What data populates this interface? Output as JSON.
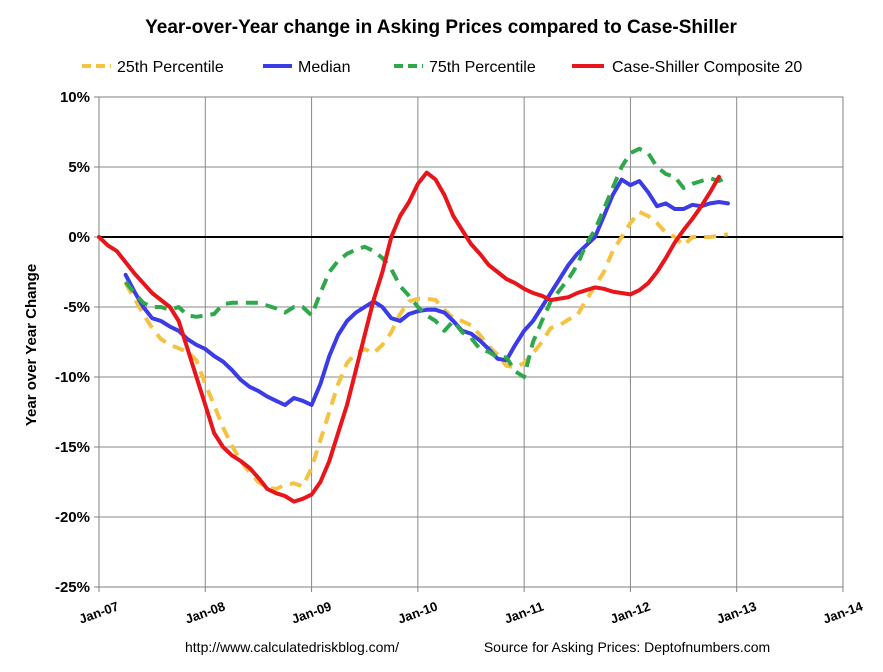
{
  "chart_data": {
    "type": "line",
    "title": "Year-over-Year change in Asking Prices compared to Case-Shiller",
    "xlabel": "",
    "ylabel": "Year over Year Change",
    "x_ticks": [
      "Jan-07",
      "Jan-08",
      "Jan-09",
      "Jan-10",
      "Jan-11",
      "Jan-12",
      "Jan-13",
      "Jan-14"
    ],
    "y_ticks": [
      "10%",
      "5%",
      "0%",
      "-5%",
      "-10%",
      "-15%",
      "-20%",
      "-25%"
    ],
    "ylim": [
      -25,
      10
    ],
    "xlim": [
      "2007-01",
      "2014-01"
    ],
    "grid": true,
    "legend_position": "top",
    "x_unit": "months since Jan-07",
    "series": [
      {
        "name": "25th Percentile",
        "color": "#F5C242",
        "style": "dashed",
        "points": [
          [
            3,
            -3.3
          ],
          [
            5,
            -5.5
          ],
          [
            6,
            -6.5
          ],
          [
            7,
            -7.3
          ],
          [
            8,
            -7.7
          ],
          [
            10,
            -8.2
          ],
          [
            11,
            -8.8
          ],
          [
            12,
            -10.5
          ],
          [
            13,
            -12
          ],
          [
            14,
            -13.6
          ],
          [
            15,
            -14.9
          ],
          [
            16,
            -16
          ],
          [
            17,
            -16.8
          ],
          [
            18,
            -17.5
          ],
          [
            19,
            -17.9
          ],
          [
            20,
            -18
          ],
          [
            21,
            -17.7
          ],
          [
            22,
            -17.6
          ],
          [
            23,
            -17.8
          ],
          [
            24,
            -16.5
          ],
          [
            25,
            -14.5
          ],
          [
            26,
            -12.5
          ],
          [
            27,
            -10.5
          ],
          [
            28,
            -9
          ],
          [
            29,
            -8.3
          ],
          [
            30,
            -8
          ],
          [
            31,
            -8.3
          ],
          [
            32,
            -7.7
          ],
          [
            33,
            -6.8
          ],
          [
            34,
            -5.5
          ],
          [
            35,
            -4.6
          ],
          [
            36,
            -4.4
          ],
          [
            37,
            -4.4
          ],
          [
            38,
            -4.5
          ],
          [
            39,
            -5.2
          ],
          [
            40,
            -5.8
          ],
          [
            41,
            -6
          ],
          [
            42,
            -6.3
          ],
          [
            43,
            -7
          ],
          [
            44,
            -7.8
          ],
          [
            45,
            -8.4
          ],
          [
            46,
            -9.2
          ],
          [
            47,
            -9.3
          ],
          [
            48,
            -9
          ],
          [
            49,
            -8.3
          ],
          [
            50,
            -7.5
          ],
          [
            51,
            -6.5
          ],
          [
            52,
            -6.3
          ],
          [
            53,
            -5.9
          ],
          [
            54,
            -5.6
          ],
          [
            55,
            -4.5
          ],
          [
            56,
            -3.5
          ],
          [
            57,
            -2.5
          ],
          [
            58,
            -1
          ],
          [
            59,
            0
          ],
          [
            60,
            1
          ],
          [
            61,
            1.8
          ],
          [
            62,
            1.5
          ],
          [
            63,
            1
          ],
          [
            64,
            0.3
          ],
          [
            65,
            0
          ],
          [
            66,
            -0.6
          ],
          [
            67,
            0
          ],
          [
            68,
            0
          ],
          [
            69,
            0
          ],
          [
            70,
            0.1
          ],
          [
            71,
            0.2
          ]
        ]
      },
      {
        "name": "Median",
        "color": "#3B3BE8",
        "style": "solid",
        "points": [
          [
            3,
            -2.7
          ],
          [
            4,
            -3.9
          ],
          [
            5,
            -5
          ],
          [
            6,
            -5.8
          ],
          [
            7,
            -6
          ],
          [
            8,
            -6.4
          ],
          [
            9,
            -6.7
          ],
          [
            10,
            -7.3
          ],
          [
            11,
            -7.7
          ],
          [
            12,
            -8
          ],
          [
            13,
            -8.5
          ],
          [
            14,
            -8.9
          ],
          [
            15,
            -9.5
          ],
          [
            16,
            -10.2
          ],
          [
            17,
            -10.7
          ],
          [
            18,
            -11
          ],
          [
            19,
            -11.4
          ],
          [
            20,
            -11.7
          ],
          [
            21,
            -12
          ],
          [
            22,
            -11.5
          ],
          [
            23,
            -11.7
          ],
          [
            24,
            -12
          ],
          [
            25,
            -10.5
          ],
          [
            26,
            -8.5
          ],
          [
            27,
            -7
          ],
          [
            28,
            -6
          ],
          [
            29,
            -5.4
          ],
          [
            30,
            -5
          ],
          [
            31,
            -4.6
          ],
          [
            32,
            -5
          ],
          [
            33,
            -5.8
          ],
          [
            34,
            -6
          ],
          [
            35,
            -5.5
          ],
          [
            36,
            -5.3
          ],
          [
            37,
            -5.2
          ],
          [
            38,
            -5.2
          ],
          [
            39,
            -5.4
          ],
          [
            40,
            -6
          ],
          [
            41,
            -6.7
          ],
          [
            42,
            -6.9
          ],
          [
            43,
            -7.4
          ],
          [
            44,
            -8
          ],
          [
            45,
            -8.7
          ],
          [
            46,
            -8.8
          ],
          [
            47,
            -7.7
          ],
          [
            48,
            -6.7
          ],
          [
            49,
            -6
          ],
          [
            50,
            -5
          ],
          [
            51,
            -4
          ],
          [
            52,
            -3
          ],
          [
            53,
            -2
          ],
          [
            54,
            -1.2
          ],
          [
            55,
            -0.6
          ],
          [
            56,
            0
          ],
          [
            57,
            1.5
          ],
          [
            58,
            3
          ],
          [
            59,
            4.1
          ],
          [
            60,
            3.7
          ],
          [
            61,
            4
          ],
          [
            62,
            3.2
          ],
          [
            63,
            2.2
          ],
          [
            64,
            2.4
          ],
          [
            65,
            2
          ],
          [
            66,
            2
          ],
          [
            67,
            2.3
          ],
          [
            68,
            2.2
          ],
          [
            69,
            2.4
          ],
          [
            70,
            2.5
          ],
          [
            71,
            2.4
          ]
        ]
      },
      {
        "name": "75th Percentile",
        "color": "#2EA84A",
        "style": "dashed",
        "points": [
          [
            3,
            -3.2
          ],
          [
            4,
            -4
          ],
          [
            5,
            -4.7
          ],
          [
            6,
            -5
          ],
          [
            7,
            -5
          ],
          [
            8,
            -5.2
          ],
          [
            9,
            -5
          ],
          [
            10,
            -5.6
          ],
          [
            11,
            -5.7
          ],
          [
            12,
            -5.6
          ],
          [
            13,
            -5.5
          ],
          [
            14,
            -4.8
          ],
          [
            15,
            -4.7
          ],
          [
            16,
            -4.7
          ],
          [
            17,
            -4.7
          ],
          [
            18,
            -4.7
          ],
          [
            19,
            -4.9
          ],
          [
            20,
            -5.1
          ],
          [
            21,
            -5.4
          ],
          [
            22,
            -5
          ],
          [
            23,
            -5
          ],
          [
            24,
            -5.6
          ],
          [
            25,
            -4
          ],
          [
            26,
            -2.5
          ],
          [
            27,
            -1.7
          ],
          [
            28,
            -1.2
          ],
          [
            29,
            -0.9
          ],
          [
            30,
            -0.7
          ],
          [
            31,
            -1
          ],
          [
            32,
            -1.5
          ],
          [
            33,
            -2.3
          ],
          [
            34,
            -3.5
          ],
          [
            35,
            -4.2
          ],
          [
            36,
            -5
          ],
          [
            37,
            -5.6
          ],
          [
            38,
            -6
          ],
          [
            39,
            -6.7
          ],
          [
            40,
            -6
          ],
          [
            41,
            -6.8
          ],
          [
            42,
            -7.2
          ],
          [
            43,
            -8
          ],
          [
            44,
            -8.2
          ],
          [
            45,
            -8.6
          ],
          [
            46,
            -8.6
          ],
          [
            47,
            -9.6
          ],
          [
            48,
            -10
          ],
          [
            49,
            -7.5
          ],
          [
            50,
            -6
          ],
          [
            51,
            -4.6
          ],
          [
            52,
            -3.8
          ],
          [
            53,
            -3
          ],
          [
            54,
            -2
          ],
          [
            55,
            -0.5
          ],
          [
            56,
            0.5
          ],
          [
            57,
            2
          ],
          [
            58,
            3.5
          ],
          [
            59,
            5
          ],
          [
            60,
            6
          ],
          [
            61,
            6.3
          ],
          [
            62,
            6
          ],
          [
            63,
            5
          ],
          [
            64,
            4.5
          ],
          [
            65,
            4.3
          ],
          [
            66,
            3.5
          ],
          [
            67,
            3.8
          ],
          [
            68,
            4
          ],
          [
            69,
            4.2
          ],
          [
            70,
            4
          ],
          [
            71,
            4.3
          ]
        ]
      },
      {
        "name": "Case-Shiller Composite 20",
        "color": "#E8151B",
        "style": "solid",
        "points": [
          [
            0,
            0
          ],
          [
            1,
            -0.6
          ],
          [
            2,
            -1
          ],
          [
            3,
            -1.8
          ],
          [
            4,
            -2.6
          ],
          [
            5,
            -3.3
          ],
          [
            6,
            -4
          ],
          [
            7,
            -4.5
          ],
          [
            8,
            -5
          ],
          [
            9,
            -6
          ],
          [
            10,
            -8
          ],
          [
            11,
            -10
          ],
          [
            12,
            -12
          ],
          [
            13,
            -14
          ],
          [
            14,
            -15
          ],
          [
            15,
            -15.6
          ],
          [
            16,
            -16
          ],
          [
            17,
            -16.5
          ],
          [
            18,
            -17.2
          ],
          [
            19,
            -18
          ],
          [
            20,
            -18.3
          ],
          [
            21,
            -18.5
          ],
          [
            22,
            -18.9
          ],
          [
            23,
            -18.7
          ],
          [
            24,
            -18.4
          ],
          [
            25,
            -17.5
          ],
          [
            26,
            -16
          ],
          [
            27,
            -14
          ],
          [
            28,
            -12
          ],
          [
            29,
            -9.5
          ],
          [
            30,
            -7
          ],
          [
            31,
            -4.5
          ],
          [
            32,
            -2.5
          ],
          [
            33,
            0
          ],
          [
            34,
            1.5
          ],
          [
            35,
            2.5
          ],
          [
            36,
            3.8
          ],
          [
            37,
            4.6
          ],
          [
            38,
            4.1
          ],
          [
            39,
            3
          ],
          [
            40,
            1.5
          ],
          [
            41,
            0.5
          ],
          [
            42,
            -0.5
          ],
          [
            43,
            -1.2
          ],
          [
            44,
            -2
          ],
          [
            45,
            -2.5
          ],
          [
            46,
            -3
          ],
          [
            47,
            -3.3
          ],
          [
            48,
            -3.7
          ],
          [
            49,
            -4
          ],
          [
            50,
            -4.2
          ],
          [
            51,
            -4.5
          ],
          [
            52,
            -4.4
          ],
          [
            53,
            -4.3
          ],
          [
            54,
            -4
          ],
          [
            55,
            -3.8
          ],
          [
            56,
            -3.6
          ],
          [
            57,
            -3.7
          ],
          [
            58,
            -3.9
          ],
          [
            59,
            -4
          ],
          [
            60,
            -4.1
          ],
          [
            61,
            -3.8
          ],
          [
            62,
            -3.3
          ],
          [
            63,
            -2.5
          ],
          [
            64,
            -1.5
          ],
          [
            65,
            -0.4
          ],
          [
            66,
            0.5
          ],
          [
            67,
            1.3
          ],
          [
            68,
            2.2
          ],
          [
            69,
            3.2
          ],
          [
            70,
            4.3
          ]
        ]
      }
    ],
    "zero_line": true
  },
  "footer": {
    "left": "http://www.calculatedriskblog.com/",
    "right": "Source for Asking Prices: Deptofnumbers.com"
  }
}
